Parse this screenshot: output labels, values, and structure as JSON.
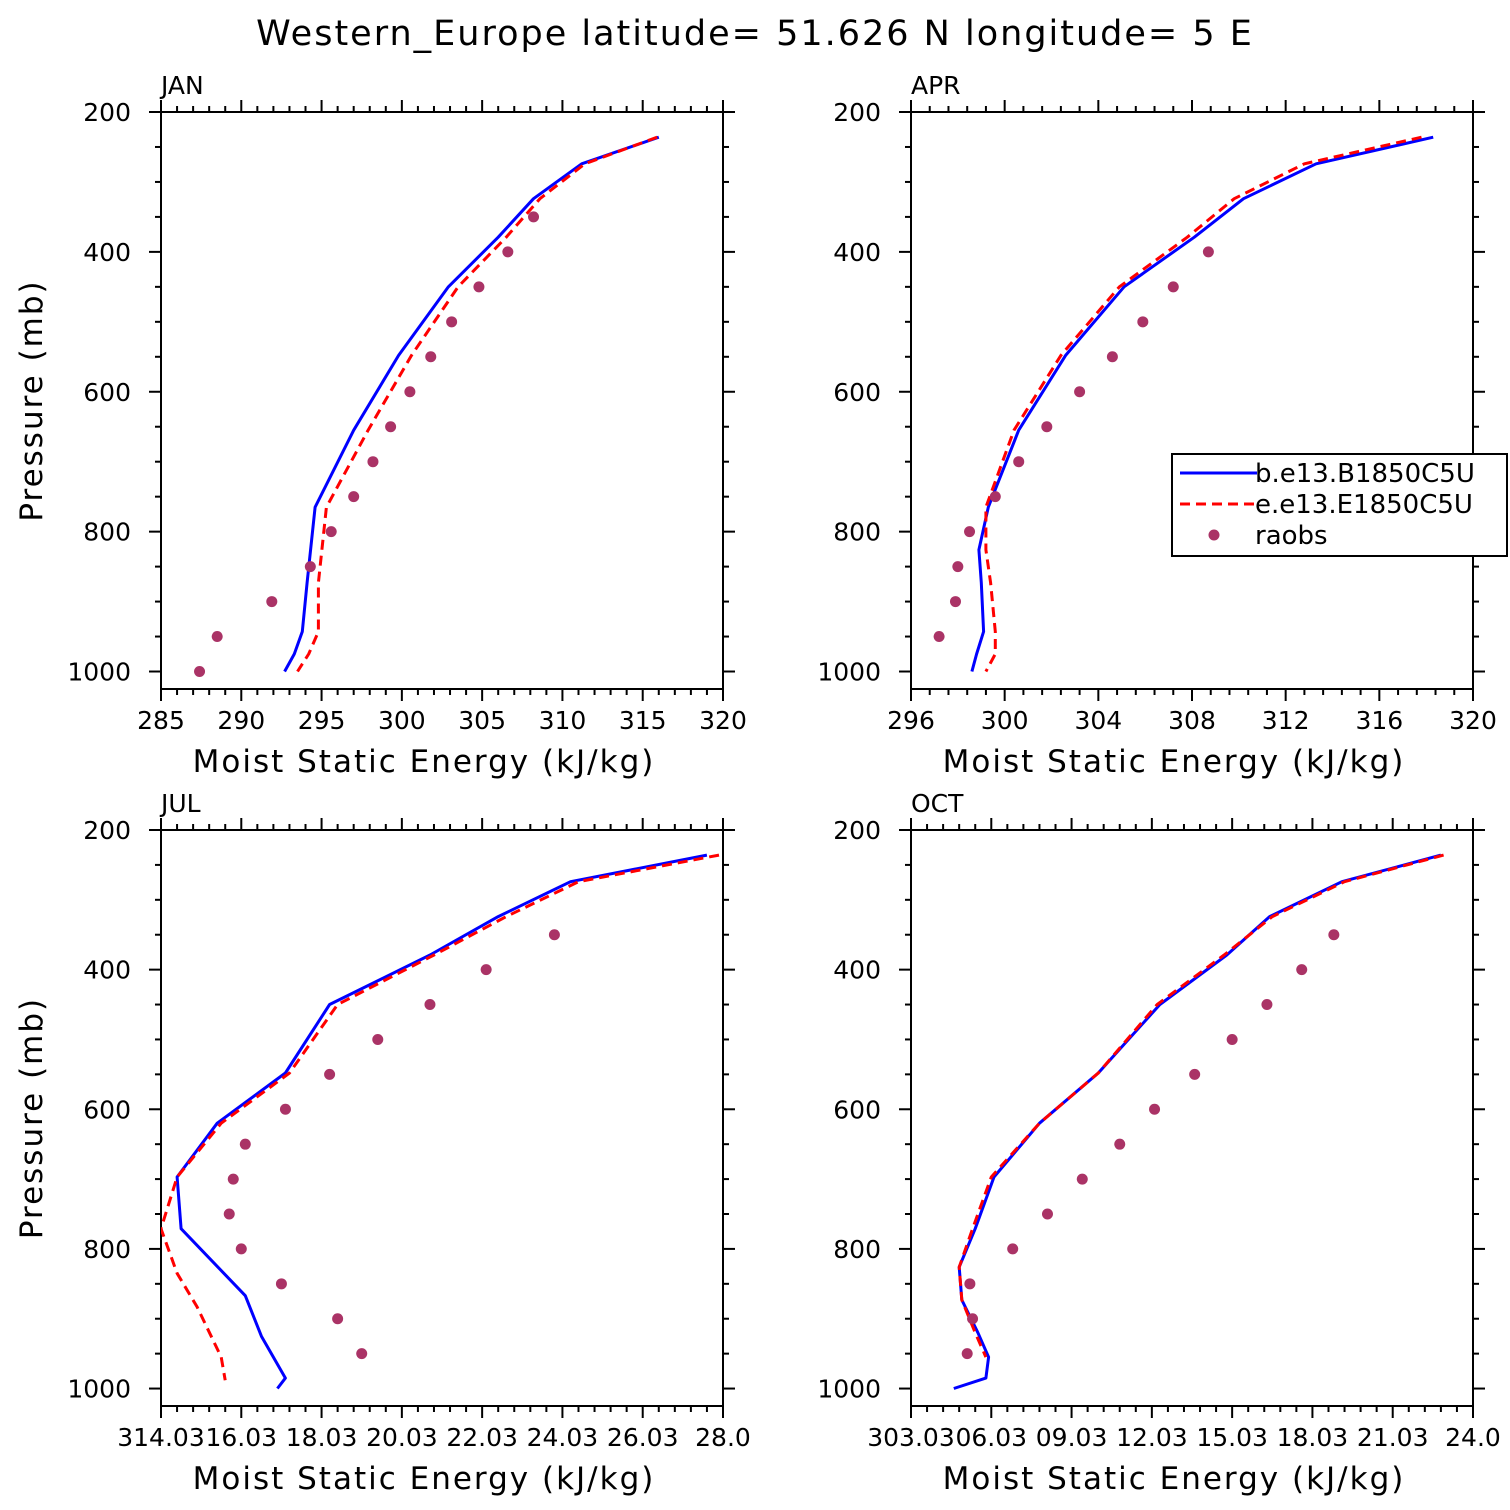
{
  "figure": {
    "title": "Western_Europe  latitude= 51.626 N longitude= 5 E"
  },
  "colors": {
    "model_b": "#0000ff",
    "model_e": "#ff0000",
    "raobs": "#aa3366",
    "axes": "#000000"
  },
  "legend": {
    "entries": [
      {
        "label": "b.e13.B1850C5U",
        "style": "solid",
        "color": "#0000ff"
      },
      {
        "label": "e.e13.E1850C5U",
        "style": "dashed",
        "color": "#ff0000"
      },
      {
        "label": "raobs",
        "style": "dot",
        "color": "#aa3366"
      }
    ],
    "panel": "APR",
    "placement": "right"
  },
  "chart_data": [
    {
      "type": "line",
      "label": "JAN",
      "xlabel": "Moist Static Energy (kJ/kg)",
      "ylabel": "Pressure (mb)",
      "xlim": [
        285,
        320
      ],
      "xticks": [
        285,
        290,
        295,
        300,
        305,
        310,
        315,
        320
      ],
      "xtick_labels": [
        "285",
        "290",
        "295",
        "300",
        "305",
        "310",
        "315",
        "320"
      ],
      "ylim": [
        1025,
        200
      ],
      "yticks": [
        200,
        400,
        600,
        800,
        1000
      ],
      "yscale": "linear-inverted",
      "series": [
        {
          "name": "b.e13.B1850C5U",
          "style": "solid",
          "x": [
            316.0,
            311.2,
            308.2,
            306.0,
            302.9,
            299.8,
            297.0,
            294.6,
            294.1,
            293.8,
            293.3,
            292.7
          ],
          "y": [
            236,
            274,
            324,
            379,
            450,
            548,
            655,
            765,
            873,
            943,
            975,
            1000
          ]
        },
        {
          "name": "e.e13.E1850C5U",
          "style": "dashed",
          "x": [
            315.9,
            311.4,
            308.6,
            306.5,
            303.5,
            300.6,
            297.9,
            295.3,
            294.8,
            294.8,
            294.2,
            293.5
          ],
          "y": [
            236,
            274,
            324,
            379,
            450,
            548,
            655,
            765,
            873,
            943,
            975,
            1000
          ]
        },
        {
          "name": "raobs",
          "style": "dot",
          "x": [
            308.2,
            306.6,
            304.8,
            303.1,
            301.8,
            300.5,
            299.3,
            298.2,
            297.0,
            295.6,
            294.3,
            291.9,
            288.5,
            287.4
          ],
          "y": [
            350,
            400,
            450,
            500,
            550,
            600,
            650,
            700,
            750,
            800,
            850,
            900,
            950,
            1000
          ]
        }
      ]
    },
    {
      "type": "line",
      "label": "APR",
      "xlabel": "Moist Static Energy (kJ/kg)",
      "ylabel": "",
      "xlim": [
        296,
        320
      ],
      "xticks": [
        296,
        300,
        304,
        308,
        312,
        316,
        320
      ],
      "xtick_labels": [
        "296",
        "300",
        "304",
        "308",
        "312",
        "316",
        "320"
      ],
      "ylim": [
        1025,
        200
      ],
      "yticks": [
        200,
        400,
        600,
        800,
        1000
      ],
      "yscale": "linear-inverted",
      "series": [
        {
          "name": "b.e13.B1850C5U",
          "style": "solid",
          "x": [
            318.3,
            313.3,
            310.2,
            308.1,
            305.1,
            302.6,
            300.6,
            299.3,
            298.9,
            299.0,
            299.1,
            298.8,
            298.6
          ],
          "y": [
            236,
            274,
            324,
            379,
            450,
            548,
            655,
            765,
            826,
            873,
            943,
            975,
            1000
          ]
        },
        {
          "name": "e.e13.E1850C5U",
          "style": "dashed",
          "x": [
            317.8,
            312.8,
            309.8,
            307.8,
            304.9,
            302.4,
            300.4,
            299.2,
            299.2,
            299.4,
            299.6,
            299.6,
            299.2
          ],
          "y": [
            236,
            274,
            324,
            379,
            450,
            548,
            655,
            765,
            826,
            873,
            943,
            975,
            1000
          ]
        },
        {
          "name": "raobs",
          "style": "dot",
          "x": [
            308.7,
            307.2,
            305.9,
            304.6,
            303.2,
            301.8,
            300.6,
            299.6,
            298.5,
            298.0,
            297.9,
            297.2
          ],
          "y": [
            400,
            450,
            500,
            550,
            600,
            650,
            700,
            750,
            800,
            850,
            900,
            950
          ]
        }
      ]
    },
    {
      "type": "line",
      "label": "JUL",
      "xlabel": "Moist Static Energy (kJ/kg)",
      "ylabel": "Pressure (mb)",
      "xlim": [
        314.0,
        328.0
      ],
      "xticks": [
        314,
        316,
        318,
        320,
        322,
        324,
        326,
        328
      ],
      "xtick_labels": [
        "314.03",
        "16.03",
        "18.03",
        "20.03",
        "22.03",
        "24.03",
        "26.03",
        "28.0"
      ],
      "ylim": [
        1025,
        200
      ],
      "yticks": [
        200,
        400,
        600,
        800,
        1000
      ],
      "yscale": "linear-inverted",
      "series": [
        {
          "name": "b.e13.B1850C5U",
          "style": "solid",
          "x": [
            327.6,
            324.2,
            322.4,
            320.7,
            318.2,
            317.1,
            315.4,
            314.4,
            314.5,
            316.1,
            316.5,
            317.1,
            316.9
          ],
          "y": [
            236,
            274,
            324,
            379,
            450,
            548,
            620,
            697,
            771,
            867,
            925,
            985,
            1000
          ]
        },
        {
          "name": "e.e13.E1850C5U",
          "style": "dashed",
          "x": [
            327.9,
            324.4,
            322.6,
            320.8,
            318.4,
            317.2,
            315.5,
            314.4,
            314.0,
            314.4,
            314.9,
            315.5,
            315.6
          ],
          "y": [
            236,
            274,
            324,
            379,
            450,
            548,
            620,
            697,
            771,
            835,
            883,
            955,
            988
          ]
        },
        {
          "name": "raobs",
          "style": "dot",
          "x": [
            323.8,
            322.1,
            320.7,
            319.4,
            318.2,
            317.1,
            316.1,
            315.8,
            315.7,
            316.0,
            317.0,
            318.4,
            319.0
          ],
          "y": [
            350,
            400,
            450,
            500,
            550,
            600,
            650,
            700,
            750,
            800,
            850,
            900,
            950
          ]
        }
      ]
    },
    {
      "type": "line",
      "label": "OCT",
      "xlabel": "Moist Static Energy (kJ/kg)",
      "ylabel": "",
      "xlim": [
        303.0,
        324.0
      ],
      "xticks": [
        303,
        306,
        309,
        312,
        315,
        318,
        321,
        324
      ],
      "xtick_labels": [
        "303.03",
        "06.03",
        "09.03",
        "12.03",
        "15.03",
        "18.03",
        "21.03",
        "24.0"
      ],
      "ylim": [
        1025,
        200
      ],
      "yticks": [
        200,
        400,
        600,
        800,
        1000
      ],
      "yscale": "linear-inverted",
      "series": [
        {
          "name": "b.e13.B1850C5U",
          "style": "solid",
          "x": [
            322.8,
            319.1,
            316.4,
            314.8,
            312.3,
            310.0,
            307.8,
            306.1,
            305.4,
            304.8,
            304.9,
            305.5,
            305.9,
            305.8,
            304.6
          ],
          "y": [
            236,
            274,
            324,
            379,
            450,
            548,
            620,
            697,
            771,
            826,
            873,
            920,
            955,
            985,
            1000
          ]
        },
        {
          "name": "e.e13.E1850C5U",
          "style": "dashed",
          "x": [
            322.9,
            319.2,
            316.5,
            314.7,
            312.2,
            310.0,
            307.8,
            306.0,
            305.3,
            304.8,
            304.9,
            305.4,
            305.8
          ],
          "y": [
            236,
            274,
            324,
            379,
            450,
            548,
            620,
            697,
            771,
            826,
            873,
            920,
            955
          ]
        },
        {
          "name": "raobs",
          "style": "dot",
          "x": [
            318.8,
            317.6,
            316.3,
            315.0,
            313.6,
            312.1,
            310.8,
            309.4,
            308.1,
            306.8,
            305.2,
            305.3,
            305.1
          ],
          "y": [
            350,
            400,
            450,
            500,
            550,
            600,
            650,
            700,
            750,
            800,
            850,
            900,
            950
          ]
        }
      ]
    }
  ]
}
